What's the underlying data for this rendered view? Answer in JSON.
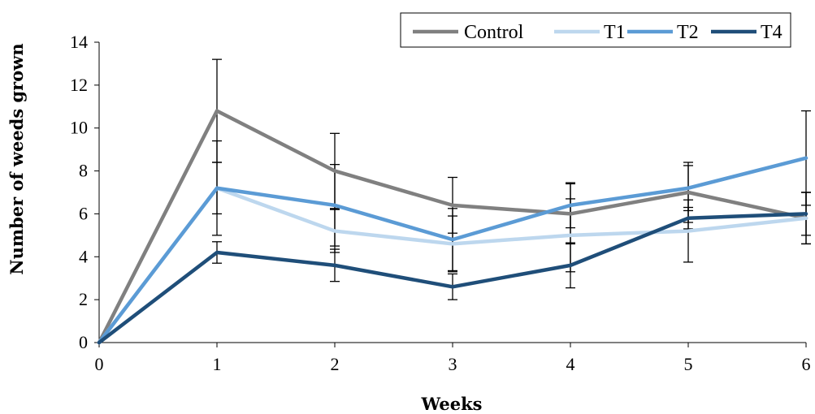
{
  "chart_data": {
    "type": "line",
    "xlabel": "Weeks",
    "ylabel": "Number of weeds grown",
    "x": [
      0,
      1,
      2,
      3,
      4,
      5,
      6
    ],
    "xlim": [
      0,
      6
    ],
    "ylim": [
      0,
      14
    ],
    "yticks": [
      0,
      2,
      4,
      6,
      8,
      10,
      12,
      14
    ],
    "xticks": [
      0,
      1,
      2,
      3,
      4,
      5,
      6
    ],
    "grid": false,
    "legend_position": "top-right",
    "series": [
      {
        "name": "Control",
        "color": "#808080",
        "values": [
          0,
          10.8,
          8.0,
          6.4,
          6.0,
          7.0,
          5.8
        ],
        "errors": [
          0,
          2.4,
          1.75,
          1.3,
          1.4,
          1.4,
          1.2
        ]
      },
      {
        "name": "T1",
        "color": "#bdd7ee",
        "values": [
          0,
          7.2,
          5.2,
          4.6,
          5.0,
          5.2,
          5.8
        ],
        "errors": [
          0,
          2.2,
          1.0,
          1.3,
          1.7,
          1.45,
          1.2
        ]
      },
      {
        "name": "T2",
        "color": "#5b9bd5",
        "values": [
          0,
          7.2,
          6.4,
          4.8,
          6.4,
          7.2,
          8.6
        ],
        "errors": [
          0,
          1.2,
          1.9,
          1.45,
          1.05,
          1.05,
          2.2
        ]
      },
      {
        "name": "T4",
        "color": "#1f4e79",
        "values": [
          0,
          4.2,
          3.6,
          2.6,
          3.6,
          5.8,
          6.0
        ],
        "errors": [
          0,
          0.5,
          0.75,
          0.6,
          1.05,
          0.5,
          1.0
        ]
      }
    ]
  }
}
